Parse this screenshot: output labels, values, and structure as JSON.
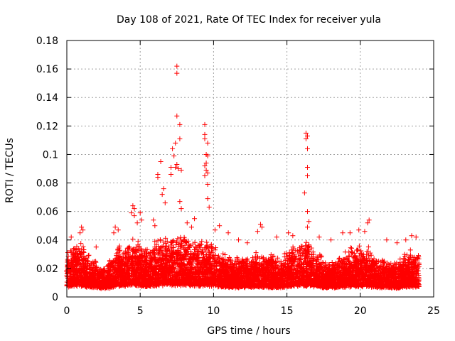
{
  "chart_data": {
    "type": "scatter",
    "title": "Day 108 of 2021, Rate Of TEC Index for receiver yula",
    "xlabel": "GPS time / hours",
    "ylabel": "ROTI / TECUs",
    "xlim": [
      0,
      25
    ],
    "ylim": [
      0,
      0.18
    ],
    "x_ticks": [
      0,
      5,
      10,
      15,
      20,
      25
    ],
    "x_tick_labels": [
      "0",
      "5",
      "10",
      "15",
      "20",
      "25"
    ],
    "y_ticks": [
      0,
      0.02,
      0.04,
      0.06,
      0.08,
      0.1,
      0.12,
      0.14,
      0.16,
      0.18
    ],
    "y_tick_labels": [
      "0",
      "0.02",
      "0.04",
      "0.06",
      "0.08",
      "0.1",
      "0.12",
      "0.14",
      "0.16",
      "0.18"
    ],
    "grid": true,
    "marker": "plus",
    "series": [
      {
        "color": "#ff0000",
        "points": [
          [
            7.5,
            0.162
          ],
          [
            7.5,
            0.157
          ],
          [
            7.7,
            0.121
          ],
          [
            7.5,
            0.127
          ],
          [
            7.7,
            0.111
          ],
          [
            7.4,
            0.108
          ],
          [
            7.2,
            0.104
          ],
          [
            7.3,
            0.099
          ],
          [
            7.5,
            0.093
          ],
          [
            7.4,
            0.091
          ],
          [
            7.6,
            0.09
          ],
          [
            7.1,
            0.091
          ],
          [
            7.8,
            0.089
          ],
          [
            7.1,
            0.086
          ],
          [
            6.4,
            0.095
          ],
          [
            6.2,
            0.086
          ],
          [
            6.2,
            0.084
          ],
          [
            6.6,
            0.076
          ],
          [
            6.5,
            0.072
          ],
          [
            7.7,
            0.067
          ],
          [
            7.8,
            0.062
          ],
          [
            6.7,
            0.066
          ],
          [
            9.4,
            0.121
          ],
          [
            9.4,
            0.114
          ],
          [
            9.4,
            0.111
          ],
          [
            9.6,
            0.108
          ],
          [
            9.5,
            0.1
          ],
          [
            9.6,
            0.099
          ],
          [
            9.5,
            0.094
          ],
          [
            9.4,
            0.092
          ],
          [
            9.5,
            0.089
          ],
          [
            9.6,
            0.087
          ],
          [
            9.4,
            0.085
          ],
          [
            9.6,
            0.079
          ],
          [
            9.6,
            0.069
          ],
          [
            9.7,
            0.063
          ],
          [
            16.3,
            0.115
          ],
          [
            16.4,
            0.113
          ],
          [
            16.3,
            0.111
          ],
          [
            16.4,
            0.104
          ],
          [
            16.4,
            0.091
          ],
          [
            16.4,
            0.085
          ],
          [
            16.2,
            0.073
          ],
          [
            16.4,
            0.06
          ],
          [
            16.5,
            0.053
          ],
          [
            16.4,
            0.049
          ],
          [
            4.5,
            0.064
          ],
          [
            4.6,
            0.062
          ],
          [
            4.4,
            0.059
          ],
          [
            4.6,
            0.057
          ],
          [
            5.0,
            0.059
          ],
          [
            5.1,
            0.054
          ],
          [
            4.8,
            0.052
          ],
          [
            5.9,
            0.054
          ],
          [
            6.0,
            0.05
          ],
          [
            8.7,
            0.055
          ],
          [
            8.2,
            0.052
          ],
          [
            8.5,
            0.049
          ],
          [
            10.4,
            0.05
          ],
          [
            10.1,
            0.047
          ],
          [
            11.0,
            0.045
          ],
          [
            13.2,
            0.051
          ],
          [
            13.3,
            0.049
          ],
          [
            13.0,
            0.046
          ],
          [
            20.6,
            0.054
          ],
          [
            20.5,
            0.052
          ],
          [
            19.9,
            0.047
          ],
          [
            20.3,
            0.046
          ],
          [
            18.8,
            0.045
          ],
          [
            19.3,
            0.045
          ],
          [
            1.0,
            0.049
          ],
          [
            1.1,
            0.047
          ],
          [
            0.9,
            0.045
          ],
          [
            3.3,
            0.049
          ],
          [
            3.5,
            0.047
          ],
          [
            3.2,
            0.045
          ],
          [
            23.5,
            0.043
          ],
          [
            23.8,
            0.042
          ],
          [
            23.1,
            0.04
          ],
          [
            14.3,
            0.042
          ],
          [
            15.1,
            0.045
          ],
          [
            15.4,
            0.043
          ],
          [
            17.2,
            0.042
          ],
          [
            18.0,
            0.04
          ],
          [
            21.8,
            0.04
          ],
          [
            22.5,
            0.038
          ],
          [
            12.3,
            0.038
          ],
          [
            11.7,
            0.04
          ],
          [
            2.0,
            0.035
          ],
          [
            0.3,
            0.042
          ]
        ],
        "dense_band": {
          "x_range": [
            0,
            24
          ],
          "y_min_typical": 0.004,
          "y_max_profile": [
            [
              0,
              0.034
            ],
            [
              0.5,
              0.038
            ],
            [
              1.0,
              0.04
            ],
            [
              1.5,
              0.03
            ],
            [
              2.0,
              0.026
            ],
            [
              2.5,
              0.022
            ],
            [
              3.0,
              0.028
            ],
            [
              3.5,
              0.038
            ],
            [
              4.0,
              0.036
            ],
            [
              4.5,
              0.044
            ],
            [
              5.0,
              0.04
            ],
            [
              5.5,
              0.034
            ],
            [
              6.0,
              0.04
            ],
            [
              6.5,
              0.044
            ],
            [
              7.0,
              0.042
            ],
            [
              7.5,
              0.046
            ],
            [
              8.0,
              0.044
            ],
            [
              8.5,
              0.042
            ],
            [
              9.0,
              0.04
            ],
            [
              9.5,
              0.042
            ],
            [
              10.0,
              0.038
            ],
            [
              10.5,
              0.034
            ],
            [
              11.0,
              0.03
            ],
            [
              11.5,
              0.028
            ],
            [
              12.0,
              0.03
            ],
            [
              12.5,
              0.03
            ],
            [
              13.0,
              0.034
            ],
            [
              13.5,
              0.03
            ],
            [
              14.0,
              0.032
            ],
            [
              14.5,
              0.03
            ],
            [
              15.0,
              0.034
            ],
            [
              15.5,
              0.036
            ],
            [
              16.0,
              0.042
            ],
            [
              16.5,
              0.04
            ],
            [
              17.0,
              0.034
            ],
            [
              17.5,
              0.028
            ],
            [
              18.0,
              0.026
            ],
            [
              18.5,
              0.03
            ],
            [
              19.0,
              0.034
            ],
            [
              19.5,
              0.036
            ],
            [
              20.0,
              0.036
            ],
            [
              20.5,
              0.038
            ],
            [
              21.0,
              0.03
            ],
            [
              21.5,
              0.028
            ],
            [
              22.0,
              0.028
            ],
            [
              22.5,
              0.026
            ],
            [
              23.0,
              0.03
            ],
            [
              23.5,
              0.034
            ],
            [
              24.0,
              0.03
            ]
          ]
        }
      }
    ]
  }
}
